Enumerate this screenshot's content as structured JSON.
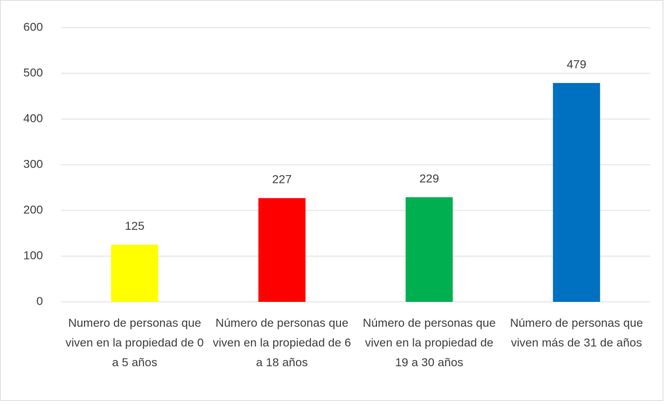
{
  "chart_data": {
    "type": "bar",
    "categories": [
      "Numero de personas que viven en la propiedad de 0 a 5 años",
      "Número de personas que viven en la propiedad de 6 a 18 años",
      "Número de personas que viven en la propiedad de 19 a 30 años",
      "Número de personas que viven más de 31 de años"
    ],
    "values": [
      125,
      227,
      229,
      479
    ],
    "colors": [
      "#ffff00",
      "#ff0000",
      "#00b050",
      "#0070c0"
    ],
    "ylim": [
      0,
      600
    ],
    "yticks": [
      0,
      100,
      200,
      300,
      400,
      500,
      600
    ],
    "grid": true
  }
}
